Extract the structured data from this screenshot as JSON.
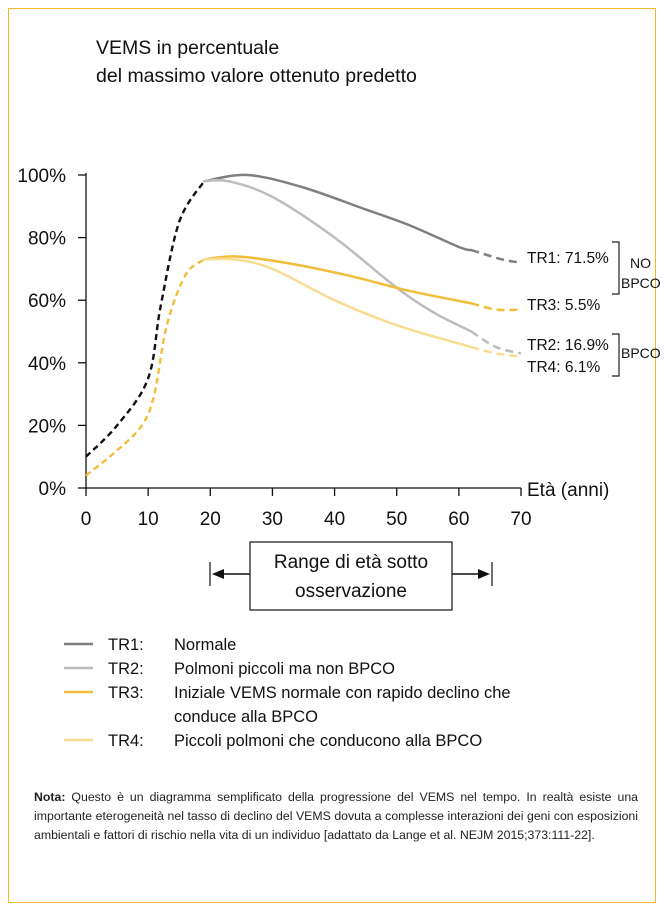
{
  "chart_data": {
    "type": "line",
    "title_line1": "VEMS in percentuale",
    "title_line2": "del massimo valore ottenuto predetto",
    "xlabel": "Età (anni)",
    "xlim": [
      0,
      70
    ],
    "ylim": [
      0,
      100
    ],
    "x_ticks": [
      "0",
      "10",
      "20",
      "30",
      "40",
      "50",
      "60",
      "70"
    ],
    "y_ticks": [
      "0%",
      "20%",
      "40%",
      "60%",
      "80%",
      "100%"
    ],
    "shared_early": {
      "upper": [
        [
          0,
          10
        ],
        [
          5,
          20
        ],
        [
          10,
          35
        ],
        [
          12,
          58
        ],
        [
          15,
          85
        ],
        [
          19,
          98
        ]
      ],
      "lower": [
        [
          0,
          4
        ],
        [
          5,
          12
        ],
        [
          9,
          20
        ],
        [
          11,
          30
        ],
        [
          13,
          52
        ],
        [
          16,
          68
        ],
        [
          19,
          73
        ]
      ]
    },
    "series": [
      {
        "name": "TR1",
        "color": "#7f7f7f",
        "values": [
          [
            19,
            98
          ],
          [
            26,
            100
          ],
          [
            35,
            96
          ],
          [
            45,
            89
          ],
          [
            52,
            84
          ],
          [
            60,
            77
          ],
          [
            62,
            76
          ]
        ],
        "projection": [
          [
            62,
            76
          ],
          [
            67,
            73
          ],
          [
            70,
            72
          ]
        ],
        "end_label": "TR1: 71.5%"
      },
      {
        "name": "TR2",
        "color": "#bdbdbd",
        "values": [
          [
            19,
            98
          ],
          [
            23,
            98
          ],
          [
            30,
            93
          ],
          [
            40,
            80
          ],
          [
            50,
            64
          ],
          [
            56,
            56
          ],
          [
            62,
            50
          ]
        ],
        "projection": [
          [
            62,
            50
          ],
          [
            66,
            45
          ],
          [
            70,
            43
          ]
        ],
        "end_label": "TR3: 5.5%"
      },
      {
        "name": "TR3",
        "color": "#f2bd3b",
        "values": [
          [
            19,
            73
          ],
          [
            24,
            74
          ],
          [
            32,
            72
          ],
          [
            42,
            68
          ],
          [
            52,
            63
          ],
          [
            62,
            59
          ]
        ],
        "projection": [
          [
            62,
            59
          ],
          [
            66,
            57
          ],
          [
            70,
            57
          ]
        ],
        "end_label": "TR2: 16.9%"
      },
      {
        "name": "TR4",
        "color": "#f8dc91",
        "values": [
          [
            19,
            73
          ],
          [
            24,
            73
          ],
          [
            30,
            70
          ],
          [
            40,
            60
          ],
          [
            50,
            52
          ],
          [
            62,
            45
          ]
        ],
        "projection": [
          [
            62,
            45
          ],
          [
            66,
            43
          ],
          [
            70,
            42
          ]
        ],
        "end_label": "TR4: 6.1%"
      }
    ],
    "bracket_labels": {
      "no_bpco_line1": "NO",
      "no_bpco_line2": "BPCO",
      "bpco": "BPCO"
    },
    "range_box": {
      "line1": "Range di età sotto",
      "line2": "osservazione",
      "x_start": 20,
      "x_end": 65
    },
    "legend": [
      {
        "code": "TR1:",
        "text": "Normale",
        "color": "#7f7f7f"
      },
      {
        "code": "TR2:",
        "text": "Polmoni piccoli ma non BPCO",
        "color": "#bdbdbd"
      },
      {
        "code": "TR3:",
        "text": "Iniziale VEMS normale con rapido declino che",
        "text2": "conduce alla BPCO",
        "color": "#f2bd3b"
      },
      {
        "code": "TR4:",
        "text": "Piccoli polmoni che conducono alla BPCO",
        "color": "#f8dc91"
      }
    ]
  },
  "note": {
    "label": "Nota:",
    "text": "Questo è un diagramma semplificato della progressione del VEMS nel tempo. In realtà esiste una importante eterogeneità nel tasso di declino del VEMS dovuta a complesse interazioni dei geni con esposizioni ambientali e fattori di rischio nella vita di un individuo [adattato da Lange et al. NEJM 2015;373:111-22]."
  }
}
